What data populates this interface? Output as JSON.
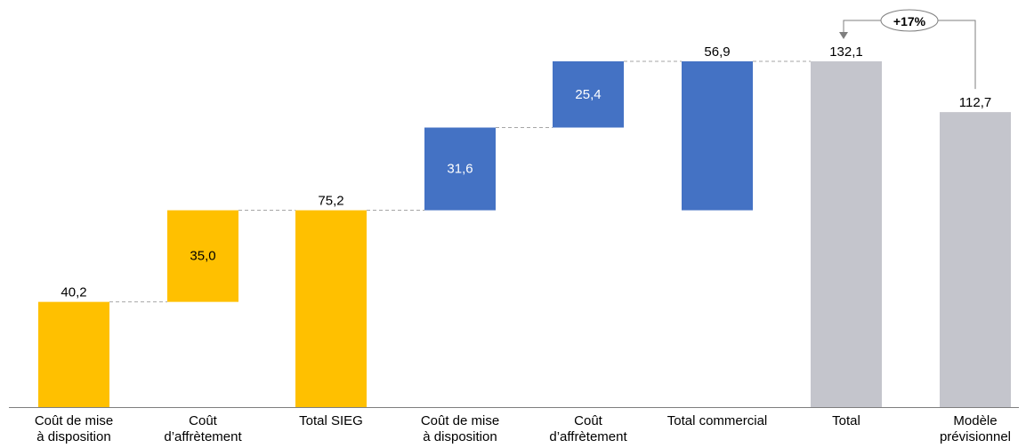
{
  "colors": {
    "sieg": "#FFC000",
    "commercial": "#4472C4",
    "total": "#C4C5CC",
    "connector": "#A6A6A6",
    "axis": "#7F7F7F",
    "text_dark": "#000000",
    "text_light": "#FFFFFF",
    "arrow": "#7F7F7F"
  },
  "chart_data": {
    "type": "bar",
    "subtype": "waterfall",
    "grid": false,
    "ylim": [
      0,
      140
    ],
    "bars": [
      {
        "label_lines": [
          "Coût de mise",
          "à disposition"
        ],
        "start": 0,
        "end": 40.2,
        "value_label": "40,2",
        "group": "sieg",
        "label_position": "above"
      },
      {
        "label_lines": [
          "Coût",
          "d’affrètement"
        ],
        "start": 40.2,
        "end": 75.2,
        "value_label": "35,0",
        "group": "sieg",
        "label_position": "inside"
      },
      {
        "label_lines": [
          "Total SIEG"
        ],
        "start": 0,
        "end": 75.2,
        "value_label": "75,2",
        "group": "sieg",
        "label_position": "above"
      },
      {
        "label_lines": [
          "Coût de mise",
          "à disposition"
        ],
        "start": 75.2,
        "end": 106.8,
        "value_label": "31,6",
        "group": "commercial",
        "label_position": "inside"
      },
      {
        "label_lines": [
          "Coût",
          "d’affrètement"
        ],
        "start": 106.8,
        "end": 132.1,
        "value_label": "25,4",
        "group": "commercial",
        "label_position": "inside"
      },
      {
        "label_lines": [
          "Total commercial"
        ],
        "start": 75.2,
        "end": 132.1,
        "value_label": "56,9",
        "group": "commercial",
        "label_position": "above"
      },
      {
        "label_lines": [
          "Total"
        ],
        "start": 0,
        "end": 132.1,
        "value_label": "132,1",
        "group": "total",
        "label_position": "above"
      },
      {
        "label_lines": [
          "Modèle",
          "prévisionnel"
        ],
        "start": 0,
        "end": 112.7,
        "value_label": "112,7",
        "group": "total",
        "label_position": "above"
      }
    ],
    "annotation": {
      "text": "+17%",
      "from_bar": 7,
      "to_bar": 6
    }
  }
}
